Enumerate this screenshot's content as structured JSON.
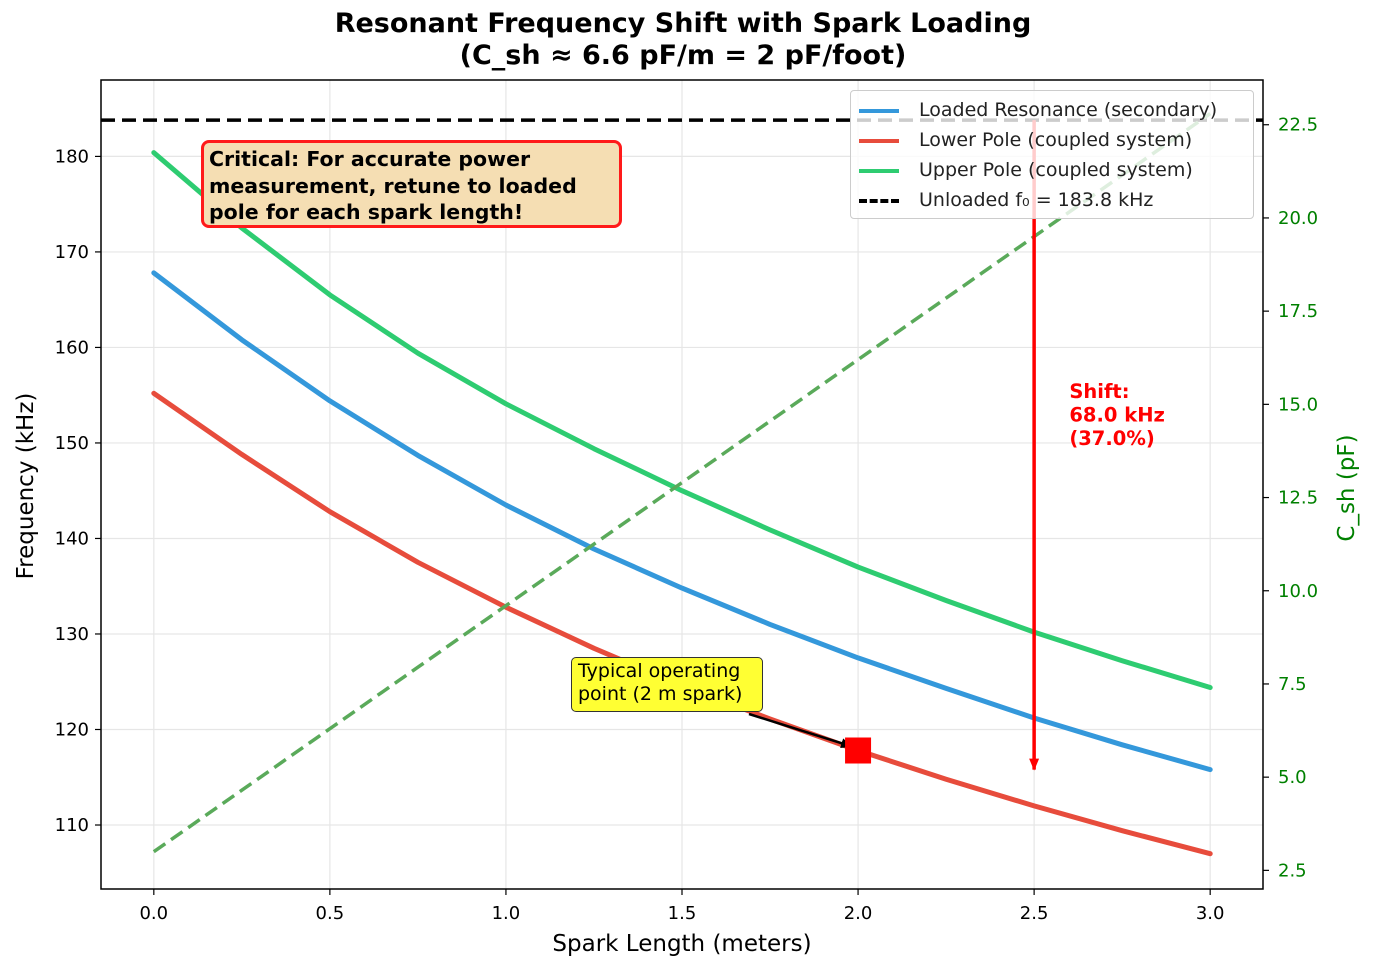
{
  "chart_data": {
    "type": "line",
    "title": "Resonant Frequency Shift with Spark Loading",
    "subtitle": "(C_sh ≈ 6.6 pF/m = 2 pF/foot)",
    "xlabel": "Spark Length (meters)",
    "ylabel": "Frequency (kHz)",
    "y2label": "C_sh (pF)",
    "xlim": [
      -0.15,
      3.15
    ],
    "ylim": [
      103.3,
      188.0
    ],
    "y2lim": [
      2.0,
      23.7
    ],
    "grid": true,
    "x_ticks": [
      "0.0",
      "0.5",
      "1.0",
      "1.5",
      "2.0",
      "2.5",
      "3.0"
    ],
    "y_ticks": [
      "110",
      "120",
      "130",
      "140",
      "150",
      "160",
      "170",
      "180"
    ],
    "y2_ticks": [
      "2.5",
      "5.0",
      "7.5",
      "10.0",
      "12.5",
      "15.0",
      "17.5",
      "20.0",
      "22.5"
    ],
    "x": [
      0.0,
      0.25,
      0.5,
      0.75,
      1.0,
      1.25,
      1.5,
      1.75,
      2.0,
      2.25,
      2.5,
      2.75,
      3.0
    ],
    "series": [
      {
        "name": "Loaded Resonance (secondary)",
        "color": "#3498db",
        "axis": "left",
        "style": "solid",
        "values": [
          167.8,
          160.8,
          154.4,
          148.7,
          143.5,
          138.9,
          134.8,
          131.0,
          127.5,
          124.3,
          121.2,
          118.4,
          115.8
        ]
      },
      {
        "name": "Lower Pole (coupled system)",
        "color": "#e74c3c",
        "axis": "left",
        "style": "solid",
        "values": [
          155.2,
          148.8,
          142.8,
          137.5,
          132.8,
          128.5,
          124.6,
          121.1,
          117.8,
          114.8,
          112.0,
          109.4,
          107.0
        ]
      },
      {
        "name": "Upper Pole (coupled system)",
        "color": "#2ecc71",
        "axis": "left",
        "style": "solid",
        "values": [
          180.4,
          172.5,
          165.5,
          159.4,
          154.1,
          149.4,
          145.0,
          140.9,
          137.0,
          133.5,
          130.2,
          127.2,
          124.4
        ]
      },
      {
        "name": "Unloaded f₀ = 183.8 kHz",
        "color": "#000000",
        "axis": "left",
        "style": "dashed",
        "constant": 183.8
      },
      {
        "name": "C_sh",
        "color": "#5aaa5a",
        "axis": "right",
        "style": "dashed",
        "legend": false,
        "values": [
          3.0,
          4.65,
          6.3,
          7.95,
          9.6,
          11.25,
          12.9,
          14.55,
          16.2,
          17.85,
          19.5,
          21.15,
          22.8
        ]
      }
    ],
    "annotations": {
      "critical_lines": [
        "Critical: For accurate power",
        "measurement, retune to loaded",
        "pole for each spark length!"
      ],
      "operating_lines": [
        "Typical operating",
        "point (2 m spark)"
      ],
      "operating_point": {
        "x": 2.0,
        "y": 117.8
      },
      "shift_lines": [
        "Shift:",
        "68.0 kHz",
        "(37.0%)"
      ],
      "shift_arrow": {
        "x": 2.5,
        "from": 183.8,
        "to": 115.8
      }
    },
    "legend_position": "top-right"
  }
}
